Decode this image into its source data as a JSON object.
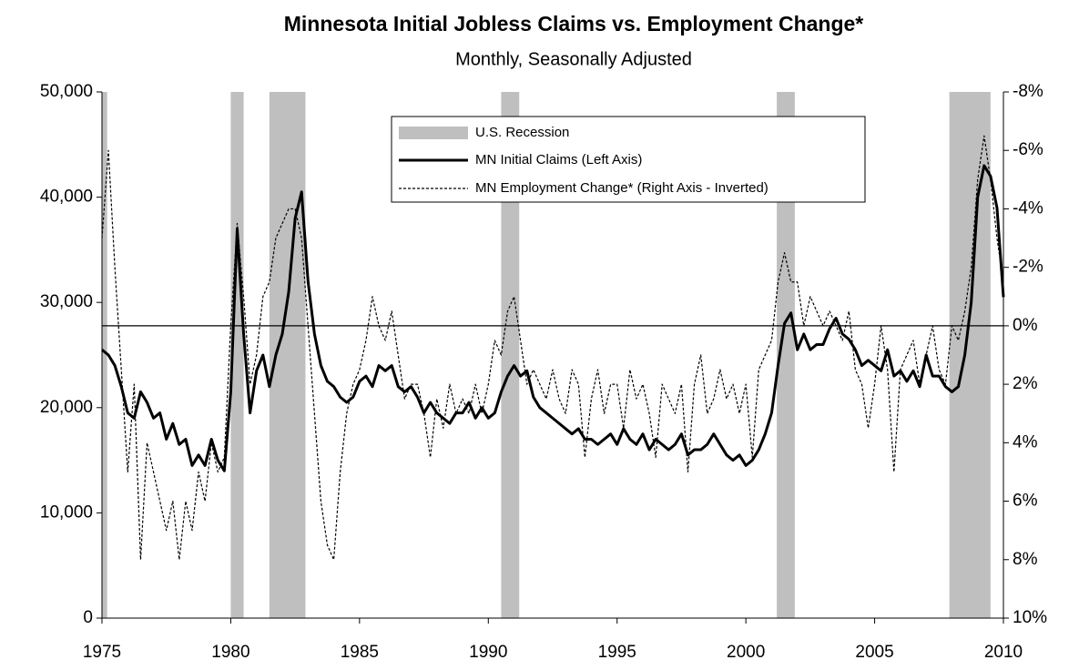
{
  "chart_data": {
    "type": "line",
    "title": "Minnesota Initial Jobless Claims vs. Employment Change*",
    "subtitle": "Monthly, Seasonally Adjusted",
    "xlim": [
      1975,
      2010
    ],
    "xticks": [
      1975,
      1980,
      1985,
      1990,
      1995,
      2000,
      2005,
      2010
    ],
    "ylim": [
      0,
      50000
    ],
    "yticks": [
      0,
      {
        "value": 10000,
        "label": "10,000"
      },
      {
        "value": 20000,
        "label": "20,000"
      },
      {
        "value": 30000,
        "label": "30,000"
      },
      {
        "value": 40000,
        "label": "40,000"
      },
      {
        "value": 50000,
        "label": "50,000"
      }
    ],
    "y2lim": [
      10,
      -8
    ],
    "y2ticks": [
      {
        "value": -8,
        "label": "-8%"
      },
      {
        "value": -6,
        "label": "-6%"
      },
      {
        "value": -4,
        "label": "-4%"
      },
      {
        "value": -2,
        "label": "-2%"
      },
      {
        "value": 0,
        "label": "0%"
      },
      {
        "value": 2,
        "label": "2%"
      },
      {
        "value": 4,
        "label": "4%"
      },
      {
        "value": 6,
        "label": "6%"
      },
      {
        "value": 8,
        "label": "8%"
      },
      {
        "value": 10,
        "label": "10%"
      }
    ],
    "y2_reference": 0,
    "recession": {
      "name": "U.S. Recession",
      "color": "#bfbfbf",
      "periods": [
        [
          1975,
          1975.2
        ],
        [
          1980,
          1980.5
        ],
        [
          1981.5,
          1982.9
        ],
        [
          1990.5,
          1991.2
        ],
        [
          2001.2,
          2001.9
        ],
        [
          2007.9,
          2009.5
        ]
      ]
    },
    "x": [
      1975,
      1975.25,
      1975.5,
      1975.75,
      1976,
      1976.25,
      1976.5,
      1976.75,
      1977,
      1977.25,
      1977.5,
      1977.75,
      1978,
      1978.25,
      1978.5,
      1978.75,
      1979,
      1979.25,
      1979.5,
      1979.75,
      1980,
      1980.25,
      1980.5,
      1980.75,
      1981,
      1981.25,
      1981.5,
      1981.75,
      1982,
      1982.25,
      1982.5,
      1982.75,
      1983,
      1983.25,
      1983.5,
      1983.75,
      1984,
      1984.25,
      1984.5,
      1984.75,
      1985,
      1985.25,
      1985.5,
      1985.75,
      1986,
      1986.25,
      1986.5,
      1986.75,
      1987,
      1987.25,
      1987.5,
      1987.75,
      1988,
      1988.25,
      1988.5,
      1988.75,
      1989,
      1989.25,
      1989.5,
      1989.75,
      1990,
      1990.25,
      1990.5,
      1990.75,
      1991,
      1991.25,
      1991.5,
      1991.75,
      1992,
      1992.25,
      1992.5,
      1992.75,
      1993,
      1993.25,
      1993.5,
      1993.75,
      1994,
      1994.25,
      1994.5,
      1994.75,
      1995,
      1995.25,
      1995.5,
      1995.75,
      1996,
      1996.25,
      1996.5,
      1996.75,
      1997,
      1997.25,
      1997.5,
      1997.75,
      1998,
      1998.25,
      1998.5,
      1998.75,
      1999,
      1999.25,
      1999.5,
      1999.75,
      2000,
      2000.25,
      2000.5,
      2000.75,
      2001,
      2001.25,
      2001.5,
      2001.75,
      2002,
      2002.25,
      2002.5,
      2002.75,
      2003,
      2003.25,
      2003.5,
      2003.75,
      2004,
      2004.25,
      2004.5,
      2004.75,
      2005,
      2005.25,
      2005.5,
      2005.75,
      2006,
      2006.25,
      2006.5,
      2006.75,
      2007,
      2007.25,
      2007.5,
      2007.75,
      2008,
      2008.25,
      2008.5,
      2008.75,
      2009,
      2009.25,
      2009.5,
      2009.75,
      2010
    ],
    "series": [
      {
        "name": "MN Initial Claims (Left Axis)",
        "color": "#000000",
        "dash": false,
        "values": [
          25500,
          25000,
          24000,
          22000,
          19500,
          19000,
          21500,
          20500,
          19000,
          19500,
          17000,
          18500,
          16500,
          17000,
          14500,
          15500,
          14500,
          17000,
          15000,
          14000,
          21500,
          37000,
          27000,
          19500,
          23500,
          25000,
          22000,
          25000,
          27000,
          31000,
          38000,
          40500,
          32000,
          27000,
          24000,
          22500,
          22000,
          21000,
          20500,
          21000,
          22500,
          23000,
          22000,
          24000,
          23500,
          24000,
          22000,
          21500,
          22000,
          21000,
          19500,
          20500,
          19500,
          19000,
          18500,
          19500,
          19500,
          20500,
          19000,
          20000,
          19000,
          19500,
          21500,
          23000,
          24000,
          23000,
          23500,
          21000,
          20000,
          19500,
          19000,
          18500,
          18000,
          17500,
          18000,
          17000,
          17000,
          16500,
          17000,
          17500,
          16500,
          18000,
          17000,
          16500,
          17500,
          16000,
          17000,
          16500,
          16000,
          16500,
          17500,
          15500,
          16000,
          16000,
          16500,
          17500,
          16500,
          15500,
          15000,
          15500,
          14500,
          15000,
          16000,
          17500,
          19500,
          24000,
          28000,
          29000,
          25500,
          27000,
          25500,
          26000,
          26000,
          27500,
          28500,
          27000,
          26500,
          25500,
          24000,
          24500,
          24000,
          23500,
          25500,
          23000,
          23500,
          22500,
          23500,
          22000,
          25000,
          23000,
          23000,
          22000,
          21500,
          22000,
          25000,
          30000,
          40000,
          43000,
          42000,
          39000,
          30500
        ]
      },
      {
        "name": "MN Employment Change* (Right Axis - Inverted)",
        "color": "#000000",
        "dash": true,
        "axis": "y2",
        "values": [
          -3,
          -6,
          -2,
          1.5,
          5,
          2,
          8,
          4,
          5,
          6,
          7,
          6,
          8,
          6,
          7,
          5,
          6,
          4,
          5,
          4.5,
          0,
          -3.5,
          -1,
          2,
          1,
          -1,
          -1.5,
          -3,
          -3.5,
          -4,
          -4,
          -3,
          0,
          3,
          6,
          7.5,
          8,
          5,
          3,
          2,
          1.5,
          0.5,
          -1,
          0,
          0.5,
          -0.5,
          1,
          2.5,
          2,
          2,
          3,
          4.5,
          2.5,
          3.5,
          2,
          3,
          2.5,
          3,
          2,
          3,
          2,
          0.5,
          1,
          -0.5,
          -1,
          0.5,
          2,
          1.5,
          2,
          2.5,
          1.5,
          2.5,
          3,
          1.5,
          2,
          4.5,
          2.5,
          1.5,
          3,
          2,
          2,
          3.5,
          1.5,
          2.5,
          2,
          3,
          4.5,
          2,
          2.5,
          3,
          2,
          5,
          2,
          1,
          3,
          2.5,
          1.5,
          2.5,
          2,
          3,
          2,
          4.5,
          1.5,
          1,
          0.5,
          -1.5,
          -2.5,
          -1.5,
          -1.5,
          0,
          -1,
          -0.5,
          0,
          -0.5,
          0,
          0.5,
          -0.5,
          1.5,
          2,
          3.5,
          2,
          0,
          1.5,
          5,
          1.5,
          1,
          0.5,
          2,
          1,
          0,
          1.5,
          2,
          0,
          0.5,
          -0.5,
          -2,
          -5,
          -6.5,
          -5,
          -3,
          -1.5
        ]
      }
    ]
  }
}
